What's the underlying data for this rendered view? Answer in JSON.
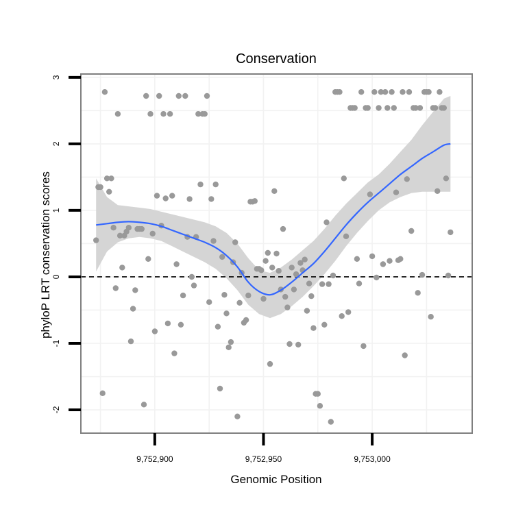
{
  "chart_data": {
    "type": "scatter",
    "title": "Conservation",
    "xlabel": "Genomic Position",
    "ylabel": "phyloP LRT conservation scores",
    "xlim": [
      9752866,
      9753046
    ],
    "ylim": [
      -2.35,
      3.05
    ],
    "x_ticks": [
      9752900,
      9752950,
      9753000
    ],
    "x_tick_labels": [
      "9,752,900",
      "9,752,950",
      "9,753,000"
    ],
    "y_ticks": [
      -2,
      -1,
      0,
      1,
      2,
      3
    ],
    "y_tick_labels": [
      "-2",
      "-1",
      "0",
      "1",
      "2",
      "3"
    ],
    "grid": true,
    "reference_line": {
      "y": 0,
      "style": "dashed"
    },
    "colors": {
      "points": "#999999",
      "smooth": "#3366ff",
      "ribbon": "#d3d3d3",
      "frame": "#7f7f7f",
      "grid": "#f2f2f2"
    },
    "points": [
      {
        "x": 9752873,
        "y": 0.55
      },
      {
        "x": 9752874,
        "y": 1.35
      },
      {
        "x": 9752875,
        "y": 1.35
      },
      {
        "x": 9752876,
        "y": -1.75
      },
      {
        "x": 9752877,
        "y": 2.78
      },
      {
        "x": 9752878,
        "y": 1.48
      },
      {
        "x": 9752879,
        "y": 1.28
      },
      {
        "x": 9752880,
        "y": 1.48
      },
      {
        "x": 9752881,
        "y": 0.74
      },
      {
        "x": 9752882,
        "y": -0.17
      },
      {
        "x": 9752883,
        "y": 2.45
      },
      {
        "x": 9752884,
        "y": 0.62
      },
      {
        "x": 9752885,
        "y": 0.14
      },
      {
        "x": 9752886,
        "y": 0.62
      },
      {
        "x": 9752887,
        "y": 0.68
      },
      {
        "x": 9752888,
        "y": 0.74
      },
      {
        "x": 9752889,
        "y": -0.97
      },
      {
        "x": 9752890,
        "y": -0.48
      },
      {
        "x": 9752891,
        "y": -0.2
      },
      {
        "x": 9752892,
        "y": 0.72
      },
      {
        "x": 9752893,
        "y": 0.72
      },
      {
        "x": 9752894,
        "y": 0.72
      },
      {
        "x": 9752895,
        "y": -1.92
      },
      {
        "x": 9752896,
        "y": 2.72
      },
      {
        "x": 9752897,
        "y": 0.27
      },
      {
        "x": 9752898,
        "y": 2.45
      },
      {
        "x": 9752899,
        "y": 0.65
      },
      {
        "x": 9752900,
        "y": -0.82
      },
      {
        "x": 9752901,
        "y": 1.22
      },
      {
        "x": 9752902,
        "y": 2.72
      },
      {
        "x": 9752903,
        "y": 0.77
      },
      {
        "x": 9752904,
        "y": 2.45
      },
      {
        "x": 9752905,
        "y": 1.18
      },
      {
        "x": 9752906,
        "y": -0.7
      },
      {
        "x": 9752907,
        "y": 2.45
      },
      {
        "x": 9752908,
        "y": 1.22
      },
      {
        "x": 9752909,
        "y": -1.15
      },
      {
        "x": 9752910,
        "y": 0.19
      },
      {
        "x": 9752911,
        "y": 2.72
      },
      {
        "x": 9752912,
        "y": -0.72
      },
      {
        "x": 9752913,
        "y": -0.28
      },
      {
        "x": 9752914,
        "y": 2.72
      },
      {
        "x": 9752915,
        "y": 0.6
      },
      {
        "x": 9752916,
        "y": 1.17
      },
      {
        "x": 9752917,
        "y": 0.0
      },
      {
        "x": 9752918,
        "y": -0.13
      },
      {
        "x": 9752919,
        "y": 0.6
      },
      {
        "x": 9752920,
        "y": 2.45
      },
      {
        "x": 9752921,
        "y": 1.39
      },
      {
        "x": 9752922,
        "y": 2.45
      },
      {
        "x": 9752923,
        "y": 2.45
      },
      {
        "x": 9752924,
        "y": 2.72
      },
      {
        "x": 9752925,
        "y": -0.38
      },
      {
        "x": 9752926,
        "y": 1.17
      },
      {
        "x": 9752927,
        "y": 0.54
      },
      {
        "x": 9752928,
        "y": 1.39
      },
      {
        "x": 9752929,
        "y": -0.75
      },
      {
        "x": 9752930,
        "y": -1.68
      },
      {
        "x": 9752931,
        "y": 0.3
      },
      {
        "x": 9752932,
        "y": -0.27
      },
      {
        "x": 9752933,
        "y": -0.55
      },
      {
        "x": 9752934,
        "y": -1.06
      },
      {
        "x": 9752935,
        "y": -0.98
      },
      {
        "x": 9752936,
        "y": 0.22
      },
      {
        "x": 9752937,
        "y": 0.52
      },
      {
        "x": 9752938,
        "y": -2.1
      },
      {
        "x": 9752939,
        "y": -0.39
      },
      {
        "x": 9752940,
        "y": 0.06
      },
      {
        "x": 9752941,
        "y": -0.69
      },
      {
        "x": 9752942,
        "y": -0.65
      },
      {
        "x": 9752943,
        "y": -0.28
      },
      {
        "x": 9752944,
        "y": 1.13
      },
      {
        "x": 9752945,
        "y": 1.13
      },
      {
        "x": 9752946,
        "y": 1.14
      },
      {
        "x": 9752947,
        "y": 0.12
      },
      {
        "x": 9752948,
        "y": 0.12
      },
      {
        "x": 9752949,
        "y": 0.1
      },
      {
        "x": 9752950,
        "y": -0.33
      },
      {
        "x": 9752951,
        "y": 0.24
      },
      {
        "x": 9752952,
        "y": 0.36
      },
      {
        "x": 9752953,
        "y": -1.31
      },
      {
        "x": 9752954,
        "y": 0.14
      },
      {
        "x": 9752955,
        "y": 1.29
      },
      {
        "x": 9752956,
        "y": 0.35
      },
      {
        "x": 9752957,
        "y": 0.09
      },
      {
        "x": 9752958,
        "y": -0.19
      },
      {
        "x": 9752959,
        "y": 0.72
      },
      {
        "x": 9752960,
        "y": -0.3
      },
      {
        "x": 9752961,
        "y": -0.46
      },
      {
        "x": 9752962,
        "y": -1.01
      },
      {
        "x": 9752963,
        "y": 0.14
      },
      {
        "x": 9752964,
        "y": -0.19
      },
      {
        "x": 9752965,
        "y": 0.04
      },
      {
        "x": 9752966,
        "y": -1.02
      },
      {
        "x": 9752967,
        "y": 0.21
      },
      {
        "x": 9752968,
        "y": 0.1
      },
      {
        "x": 9752969,
        "y": 0.26
      },
      {
        "x": 9752970,
        "y": -0.51
      },
      {
        "x": 9752971,
        "y": -0.1
      },
      {
        "x": 9752972,
        "y": -0.29
      },
      {
        "x": 9752973,
        "y": -0.77
      },
      {
        "x": 9752974,
        "y": -1.76
      },
      {
        "x": 9752975,
        "y": -1.76
      },
      {
        "x": 9752976,
        "y": -1.94
      },
      {
        "x": 9752977,
        "y": -0.11
      },
      {
        "x": 9752978,
        "y": -0.72
      },
      {
        "x": 9752979,
        "y": 0.82
      },
      {
        "x": 9752980,
        "y": -0.11
      },
      {
        "x": 9752981,
        "y": -2.18
      },
      {
        "x": 9752982,
        "y": 0.02
      },
      {
        "x": 9752983,
        "y": 2.78
      },
      {
        "x": 9752984,
        "y": 2.78
      },
      {
        "x": 9752985,
        "y": 2.78
      },
      {
        "x": 9752986,
        "y": -0.59
      },
      {
        "x": 9752987,
        "y": 1.48
      },
      {
        "x": 9752988,
        "y": 0.61
      },
      {
        "x": 9752989,
        "y": -0.53
      },
      {
        "x": 9752990,
        "y": 2.54
      },
      {
        "x": 9752991,
        "y": 2.54
      },
      {
        "x": 9752992,
        "y": 2.54
      },
      {
        "x": 9752993,
        "y": 0.27
      },
      {
        "x": 9752994,
        "y": -0.1
      },
      {
        "x": 9752995,
        "y": 2.78
      },
      {
        "x": 9752996,
        "y": -1.04
      },
      {
        "x": 9752997,
        "y": 2.54
      },
      {
        "x": 9752998,
        "y": 2.54
      },
      {
        "x": 9752999,
        "y": 1.24
      },
      {
        "x": 9753000,
        "y": 0.31
      },
      {
        "x": 9753001,
        "y": 2.78
      },
      {
        "x": 9753002,
        "y": -0.01
      },
      {
        "x": 9753003,
        "y": 2.54
      },
      {
        "x": 9753004,
        "y": 2.78
      },
      {
        "x": 9753005,
        "y": 0.19
      },
      {
        "x": 9753006,
        "y": 2.78
      },
      {
        "x": 9753007,
        "y": 2.54
      },
      {
        "x": 9753008,
        "y": 0.24
      },
      {
        "x": 9753009,
        "y": 2.78
      },
      {
        "x": 9753010,
        "y": 2.54
      },
      {
        "x": 9753011,
        "y": 1.27
      },
      {
        "x": 9753012,
        "y": 0.25
      },
      {
        "x": 9753013,
        "y": 0.27
      },
      {
        "x": 9753014,
        "y": 2.78
      },
      {
        "x": 9753015,
        "y": -1.18
      },
      {
        "x": 9753016,
        "y": 1.47
      },
      {
        "x": 9753017,
        "y": 2.78
      },
      {
        "x": 9753018,
        "y": 0.69
      },
      {
        "x": 9753019,
        "y": 2.54
      },
      {
        "x": 9753020,
        "y": 2.54
      },
      {
        "x": 9753021,
        "y": -0.24
      },
      {
        "x": 9753022,
        "y": 2.54
      },
      {
        "x": 9753023,
        "y": 0.03
      },
      {
        "x": 9753024,
        "y": 2.78
      },
      {
        "x": 9753025,
        "y": 2.78
      },
      {
        "x": 9753026,
        "y": 2.78
      },
      {
        "x": 9753027,
        "y": -0.6
      },
      {
        "x": 9753028,
        "y": 2.54
      },
      {
        "x": 9753029,
        "y": 2.54
      },
      {
        "x": 9753030,
        "y": 1.29
      },
      {
        "x": 9753031,
        "y": 2.78
      },
      {
        "x": 9753032,
        "y": 2.54
      },
      {
        "x": 9753033,
        "y": 2.54
      },
      {
        "x": 9753034,
        "y": 1.48
      },
      {
        "x": 9753035,
        "y": 0.02
      },
      {
        "x": 9753036,
        "y": 0.67
      }
    ],
    "smooth_line": {
      "x": [
        9752873,
        9752878,
        9752883,
        9752888,
        9752893,
        9752898,
        9752903,
        9752908,
        9752913,
        9752918,
        9752923,
        9752928,
        9752933,
        9752938,
        9752943,
        9752948,
        9752953,
        9752958,
        9752963,
        9752968,
        9752973,
        9752978,
        9752983,
        9752988,
        9752993,
        9752998,
        9753003,
        9753008,
        9753013,
        9753018,
        9753023,
        9753028,
        9753033,
        9753036
      ],
      "y": [
        0.78,
        0.8,
        0.82,
        0.83,
        0.82,
        0.8,
        0.76,
        0.7,
        0.64,
        0.58,
        0.52,
        0.44,
        0.32,
        0.15,
        -0.08,
        -0.22,
        -0.27,
        -0.2,
        -0.08,
        0.06,
        0.2,
        0.38,
        0.58,
        0.78,
        0.96,
        1.12,
        1.26,
        1.4,
        1.54,
        1.66,
        1.78,
        1.88,
        1.98,
        2.0
      ]
    },
    "confidence_ribbon": {
      "x": [
        9752873,
        9752878,
        9752883,
        9752888,
        9752893,
        9752898,
        9752903,
        9752908,
        9752913,
        9752918,
        9752923,
        9752928,
        9752933,
        9752938,
        9752943,
        9752948,
        9752953,
        9752958,
        9752963,
        9752968,
        9752973,
        9752978,
        9752983,
        9752988,
        9752993,
        9752998,
        9753003,
        9753008,
        9753013,
        9753018,
        9753023,
        9753028,
        9753033,
        9753036
      ],
      "lower": [
        0.08,
        0.38,
        0.52,
        0.58,
        0.6,
        0.58,
        0.54,
        0.46,
        0.38,
        0.3,
        0.22,
        0.12,
        -0.02,
        -0.2,
        -0.42,
        -0.56,
        -0.62,
        -0.56,
        -0.44,
        -0.3,
        -0.14,
        0.04,
        0.24,
        0.46,
        0.66,
        0.84,
        1.0,
        1.12,
        1.2,
        1.26,
        1.28,
        1.28,
        1.28,
        1.28
      ],
      "upper": [
        1.48,
        1.2,
        1.08,
        1.06,
        1.04,
        1.02,
        0.98,
        0.94,
        0.9,
        0.86,
        0.82,
        0.76,
        0.66,
        0.5,
        0.28,
        0.1,
        0.06,
        0.14,
        0.26,
        0.4,
        0.54,
        0.72,
        0.92,
        1.1,
        1.26,
        1.42,
        1.54,
        1.7,
        1.88,
        2.06,
        2.28,
        2.48,
        2.68,
        2.72
      ]
    }
  }
}
